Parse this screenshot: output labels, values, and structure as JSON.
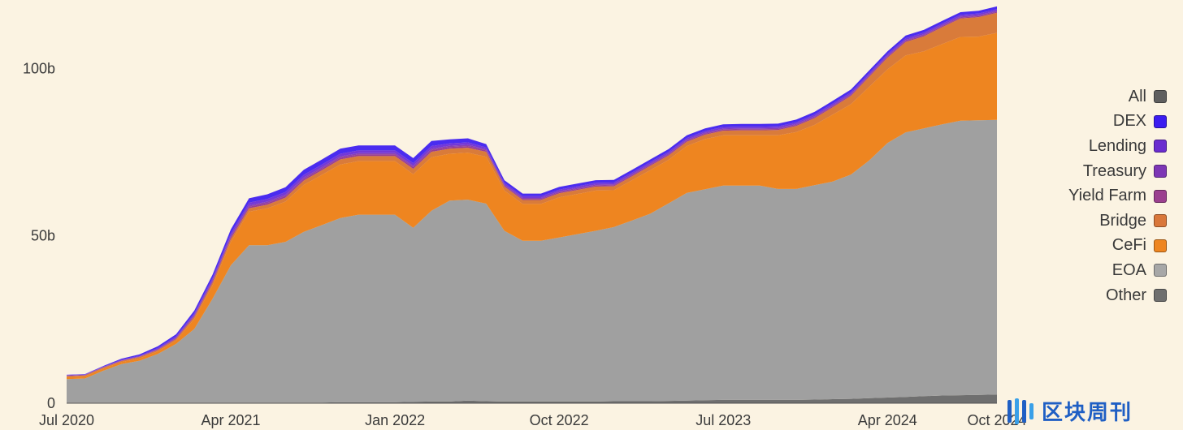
{
  "chart_data": {
    "type": "area",
    "stacked": true,
    "x": [
      "2020-07",
      "2020-08",
      "2020-09",
      "2020-10",
      "2020-11",
      "2020-12",
      "2021-01",
      "2021-02",
      "2021-03",
      "2021-04",
      "2021-05",
      "2021-06",
      "2021-07",
      "2021-08",
      "2021-09",
      "2021-10",
      "2021-11",
      "2021-12",
      "2022-01",
      "2022-02",
      "2022-03",
      "2022-04",
      "2022-05",
      "2022-06",
      "2022-07",
      "2022-08",
      "2022-09",
      "2022-10",
      "2022-11",
      "2022-12",
      "2023-01",
      "2023-02",
      "2023-03",
      "2023-04",
      "2023-05",
      "2023-06",
      "2023-07",
      "2023-08",
      "2023-09",
      "2023-10",
      "2023-11",
      "2023-12",
      "2024-01",
      "2024-02",
      "2024-03",
      "2024-04",
      "2024-05",
      "2024-06",
      "2024-07",
      "2024-08",
      "2024-09",
      "2024-10"
    ],
    "x_ticks": [
      "Jul 2020",
      "Apr 2021",
      "Jan 2022",
      "Oct 2022",
      "Jul 2023",
      "Apr 2024",
      "Oct 2024"
    ],
    "y_ticks": [
      "0",
      "50b",
      "100b"
    ],
    "ylim": [
      0,
      118
    ],
    "series": [
      {
        "name": "Other",
        "color": "#6f6f6f",
        "values": [
          0.2,
          0.2,
          0.2,
          0.2,
          0.2,
          0.2,
          0.2,
          0.2,
          0.2,
          0.2,
          0.2,
          0.2,
          0.2,
          0.2,
          0.2,
          0.3,
          0.3,
          0.3,
          0.3,
          0.4,
          0.5,
          0.5,
          0.8,
          0.6,
          0.5,
          0.5,
          0.5,
          0.5,
          0.5,
          0.5,
          0.6,
          0.6,
          0.6,
          0.7,
          0.8,
          0.9,
          1.0,
          1.0,
          1.0,
          1.0,
          1.0,
          1.1,
          1.2,
          1.3,
          1.5,
          1.7,
          1.9,
          2.1,
          2.3,
          2.4,
          2.5,
          2.6
        ]
      },
      {
        "name": "EOA",
        "color": "#a0a0a0",
        "values": [
          7.0,
          7.2,
          9.5,
          11.5,
          12.5,
          14.5,
          17.5,
          22,
          31,
          41,
          47,
          47,
          48,
          51,
          53,
          55,
          56,
          56,
          56,
          52,
          57,
          60,
          60,
          59,
          51,
          48,
          48,
          49,
          50,
          51,
          52,
          54,
          56,
          59,
          62,
          63,
          64,
          64,
          64,
          63,
          63,
          64,
          65,
          67,
          71,
          76,
          79,
          80,
          81,
          82,
          82,
          82
        ]
      },
      {
        "name": "CeFi",
        "color": "#ee8520",
        "values": [
          0.6,
          0.6,
          0.6,
          0.6,
          0.7,
          0.8,
          1.0,
          3,
          4,
          7,
          10,
          11,
          12,
          14,
          15,
          16,
          16,
          16,
          16,
          16,
          16,
          14,
          14,
          14,
          12,
          11,
          11,
          12,
          12,
          12,
          11,
          12,
          13,
          13,
          14,
          15,
          15,
          15,
          15,
          16,
          17,
          18,
          20,
          21,
          22,
          22,
          23,
          23,
          24,
          25,
          25,
          26
        ]
      },
      {
        "name": "Bridge",
        "color": "#d97b3a",
        "values": [
          0.3,
          0.3,
          0.3,
          0.3,
          0.4,
          0.4,
          0.5,
          0.6,
          0.8,
          0.9,
          1.0,
          1.1,
          1.2,
          1.3,
          1.4,
          1.5,
          1.5,
          1.5,
          1.5,
          1.6,
          1.6,
          1.5,
          1.5,
          1.5,
          1.2,
          1.2,
          1.2,
          1.2,
          1.2,
          1.2,
          1.2,
          1.2,
          1.3,
          1.3,
          1.3,
          1.3,
          1.4,
          1.5,
          1.5,
          1.6,
          1.8,
          2.0,
          2.2,
          2.5,
          3.0,
          3.5,
          4.0,
          4.5,
          5.0,
          5.5,
          5.8,
          6.0
        ]
      },
      {
        "name": "Yield Farm",
        "color": "#9b3f8f",
        "values": [
          0.1,
          0.1,
          0.1,
          0.1,
          0.1,
          0.1,
          0.2,
          0.3,
          0.4,
          0.5,
          0.5,
          0.5,
          0.5,
          0.5,
          0.5,
          0.5,
          0.5,
          0.5,
          0.5,
          0.5,
          0.5,
          0.5,
          0.5,
          0.4,
          0.3,
          0.3,
          0.3,
          0.3,
          0.3,
          0.3,
          0.3,
          0.3,
          0.3,
          0.3,
          0.3,
          0.3,
          0.3,
          0.3,
          0.3,
          0.3,
          0.3,
          0.3,
          0.3,
          0.3,
          0.3,
          0.3,
          0.3,
          0.3,
          0.3,
          0.3,
          0.3,
          0.3
        ]
      },
      {
        "name": "Treasury",
        "color": "#8a3fb0",
        "values": [
          0.1,
          0.1,
          0.1,
          0.1,
          0.1,
          0.2,
          0.2,
          0.3,
          0.4,
          0.4,
          0.4,
          0.4,
          0.4,
          0.4,
          0.4,
          0.4,
          0.4,
          0.4,
          0.4,
          0.4,
          0.4,
          0.4,
          0.4,
          0.3,
          0.3,
          0.3,
          0.3,
          0.3,
          0.3,
          0.3,
          0.3,
          0.3,
          0.3,
          0.3,
          0.3,
          0.3,
          0.3,
          0.3,
          0.3,
          0.3,
          0.3,
          0.3,
          0.3,
          0.3,
          0.3,
          0.3,
          0.3,
          0.3,
          0.3,
          0.3,
          0.3,
          0.3
        ]
      },
      {
        "name": "Lending",
        "color": "#7338d8",
        "values": [
          0.1,
          0.1,
          0.1,
          0.2,
          0.2,
          0.3,
          0.4,
          0.5,
          0.6,
          0.7,
          0.8,
          0.8,
          0.8,
          0.8,
          0.8,
          0.8,
          0.8,
          0.8,
          0.8,
          0.8,
          0.8,
          0.7,
          0.7,
          0.6,
          0.5,
          0.5,
          0.5,
          0.5,
          0.5,
          0.5,
          0.5,
          0.5,
          0.5,
          0.5,
          0.5,
          0.5,
          0.5,
          0.5,
          0.5,
          0.5,
          0.5,
          0.5,
          0.5,
          0.5,
          0.5,
          0.5,
          0.5,
          0.5,
          0.5,
          0.5,
          0.5,
          0.5
        ]
      },
      {
        "name": "DEX",
        "color": "#4a2cf0",
        "values": [
          0.1,
          0.1,
          0.2,
          0.3,
          0.4,
          0.5,
          0.6,
          0.8,
          1.0,
          1.2,
          1.3,
          1.4,
          1.4,
          1.5,
          1.5,
          1.5,
          1.5,
          1.5,
          1.5,
          1.5,
          1.5,
          1.2,
          1.2,
          1.0,
          0.8,
          0.8,
          0.8,
          0.8,
          0.8,
          0.8,
          0.8,
          0.8,
          0.8,
          0.8,
          0.8,
          0.8,
          0.8,
          0.8,
          0.8,
          0.8,
          0.8,
          0.8,
          0.8,
          0.8,
          0.8,
          0.8,
          0.8,
          0.8,
          0.8,
          0.8,
          0.8,
          0.8
        ]
      }
    ]
  },
  "legend": [
    {
      "label": "All",
      "color": "#5f5f5f"
    },
    {
      "label": "DEX",
      "color": "#3b1cf0"
    },
    {
      "label": "Lending",
      "color": "#6a2ccf"
    },
    {
      "label": "Treasury",
      "color": "#7d36b5"
    },
    {
      "label": "Yield Farm",
      "color": "#9b3f8f"
    },
    {
      "label": "Bridge",
      "color": "#d9773a"
    },
    {
      "label": "CeFi",
      "color": "#ee8520"
    },
    {
      "label": "EOA",
      "color": "#a7a7a7"
    },
    {
      "label": "Other",
      "color": "#6f6f6f"
    }
  ],
  "watermark": {
    "text": "区块周刊"
  }
}
